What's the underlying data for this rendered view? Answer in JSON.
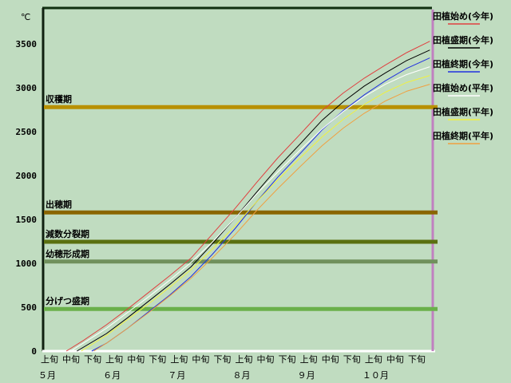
{
  "chart_data": {
    "type": "line",
    "ylabel": "℃",
    "ylim": [
      0,
      3500
    ],
    "yticks": [
      "0",
      "500",
      "1000",
      "1500",
      "2000",
      "2500",
      "3000",
      "3500"
    ],
    "xlim": [
      "5/1",
      "10/31"
    ],
    "x_dekad_labels": [
      "上旬",
      "中旬",
      "下旬",
      "上旬",
      "中旬",
      "下旬",
      "上旬",
      "中旬",
      "下旬",
      "上旬",
      "中旬",
      "下旬",
      "上旬",
      "中旬",
      "下旬",
      "上旬",
      "中旬",
      "下旬"
    ],
    "x_month_labels": [
      "５月",
      "６月",
      "７月",
      "８月",
      "９月",
      "１０月"
    ],
    "grid": false,
    "legend": "right",
    "x": [
      "5/10",
      "5/20",
      "5/31",
      "6/10",
      "6/20",
      "6/30",
      "7/10",
      "7/20",
      "7/31",
      "8/10",
      "8/20",
      "8/31",
      "9/10",
      "9/20",
      "9/30",
      "10/10",
      "10/20",
      "10/31"
    ],
    "series": [
      {
        "name": "田植始め(今年)",
        "color": "#e04040",
        "start": "5/12",
        "values": [
          null,
          120,
          300,
          480,
          670,
          860,
          1060,
          1330,
          1630,
          1920,
          2200,
          2480,
          2740,
          2940,
          3110,
          3260,
          3400,
          3530
        ]
      },
      {
        "name": "田植盛期(今年)",
        "color": "#000000",
        "start": "5/17",
        "values": [
          null,
          null,
          200,
          380,
          570,
          760,
          960,
          1220,
          1520,
          1810,
          2090,
          2370,
          2630,
          2840,
          3020,
          3170,
          3310,
          3430
        ]
      },
      {
        "name": "田植終期(今年)",
        "color": "#2030e0",
        "start": "5/24",
        "values": [
          null,
          null,
          90,
          260,
          450,
          640,
          850,
          1100,
          1400,
          1700,
          1980,
          2260,
          2520,
          2740,
          2920,
          3080,
          3220,
          3340
        ]
      },
      {
        "name": "田植始め(平年)",
        "color": "#ffffff",
        "start": "5/14",
        "values": [
          null,
          90,
          260,
          440,
          620,
          810,
          1010,
          1240,
          1520,
          1790,
          2040,
          2300,
          2530,
          2730,
          2900,
          3040,
          3150,
          3240
        ]
      },
      {
        "name": "田植盛期(平年)",
        "color": "#f0f040",
        "start": "5/19",
        "values": [
          null,
          null,
          180,
          360,
          540,
          730,
          930,
          1160,
          1430,
          1700,
          1950,
          2210,
          2440,
          2640,
          2810,
          2950,
          3060,
          3140
        ]
      },
      {
        "name": "田植終期(平年)",
        "color": "#f0a040",
        "start": "5/25",
        "values": [
          null,
          null,
          90,
          260,
          440,
          630,
          830,
          1060,
          1330,
          1600,
          1850,
          2110,
          2340,
          2540,
          2710,
          2850,
          2960,
          3040
        ]
      }
    ],
    "annotations": [
      {
        "label": "収穫期",
        "value": 2780,
        "color": "#b89000"
      },
      {
        "label": "出穂期",
        "value": 1580,
        "color": "#8a6600"
      },
      {
        "label": "減数分裂期",
        "value": 1245,
        "color": "#5a7010"
      },
      {
        "label": "幼穂形成期",
        "value": 1020,
        "color": "#70905c"
      },
      {
        "label": "分げつ盛期",
        "value": 480,
        "color": "#6ab04a"
      }
    ]
  }
}
